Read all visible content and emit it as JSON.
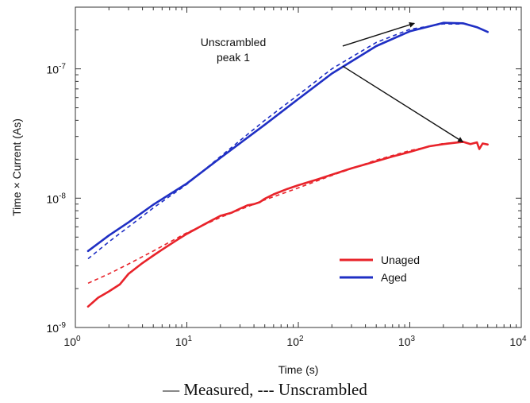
{
  "chart_data": {
    "type": "line",
    "title": "",
    "xlabel": "Time (s)",
    "ylabel": "Time × Current (As)",
    "x_scale": "log",
    "y_scale": "log",
    "xlim": [
      1,
      10000
    ],
    "ylim": [
      1e-09,
      3e-07
    ],
    "x_ticks": [
      {
        "value": 1,
        "base": "10",
        "exp": "0"
      },
      {
        "value": 10,
        "base": "10",
        "exp": "1"
      },
      {
        "value": 100,
        "base": "10",
        "exp": "2"
      },
      {
        "value": 1000,
        "base": "10",
        "exp": "3"
      },
      {
        "value": 10000,
        "base": "10",
        "exp": "4"
      }
    ],
    "y_ticks": [
      {
        "value": 1e-09,
        "base": "10",
        "exp": "-9"
      },
      {
        "value": 1e-08,
        "base": "10",
        "exp": "-8"
      },
      {
        "value": 1e-07,
        "base": "10",
        "exp": "-7"
      }
    ],
    "grid": false,
    "legend_position": "bottom-right",
    "legend": [
      {
        "label": "Unaged",
        "color": "#e8232a"
      },
      {
        "label": "Aged",
        "color": "#1f2fc4"
      }
    ],
    "series": [
      {
        "key": "unaged-measured",
        "style": "solid",
        "color": "#e8232a",
        "x": [
          1.3,
          1.6,
          2,
          2.5,
          3,
          4,
          5,
          6,
          8,
          10,
          15,
          20,
          25,
          30,
          35,
          40,
          45,
          50,
          60,
          80,
          100,
          150,
          200,
          300,
          500,
          700,
          1000,
          1500,
          2000,
          2500,
          3000,
          3500,
          4000,
          4200,
          4500,
          5000
        ],
        "y": [
          1.45e-09,
          1.7e-09,
          1.9e-09,
          2.15e-09,
          2.6e-09,
          3.15e-09,
          3.6e-09,
          4e-09,
          4.7e-09,
          5.3e-09,
          6.4e-09,
          7.3e-09,
          7.7e-09,
          8.3e-09,
          8.8e-09,
          9e-09,
          9.3e-09,
          9.9e-09,
          1.07e-08,
          1.18e-08,
          1.26e-08,
          1.4e-08,
          1.52e-08,
          1.7e-08,
          1.93e-08,
          2.1e-08,
          2.28e-08,
          2.52e-08,
          2.62e-08,
          2.68e-08,
          2.73e-08,
          2.62e-08,
          2.7e-08,
          2.4e-08,
          2.65e-08,
          2.6e-08
        ]
      },
      {
        "key": "unaged-unscrambled",
        "style": "dashed",
        "color": "#e8232a",
        "x": [
          1.3,
          2,
          3,
          5,
          10,
          20,
          50,
          100,
          200,
          500,
          1000,
          2000,
          3000
        ],
        "y": [
          2.2e-09,
          2.6e-09,
          3.1e-09,
          3.9e-09,
          5.4e-09,
          7.1e-09,
          9.7e-09,
          1.2e-08,
          1.5e-08,
          1.97e-08,
          2.33e-08,
          2.65e-08,
          2.7e-08
        ]
      },
      {
        "key": "aged-measured",
        "style": "solid",
        "color": "#1f2fc4",
        "x": [
          1.3,
          2,
          3,
          5,
          10,
          20,
          50,
          100,
          200,
          500,
          1000,
          2000,
          3000,
          4000,
          5000
        ],
        "y": [
          3.9e-09,
          5.15e-09,
          6.5e-09,
          8.9e-09,
          1.3e-08,
          2.05e-08,
          3.7e-08,
          5.85e-08,
          9.2e-08,
          1.5e-07,
          1.95e-07,
          2.27e-07,
          2.25e-07,
          2.1e-07,
          1.93e-07
        ]
      },
      {
        "key": "aged-unscrambled",
        "style": "dashed",
        "color": "#1f2fc4",
        "x": [
          1.3,
          2,
          3,
          5,
          10,
          20,
          50,
          100,
          200,
          500,
          1000,
          2000,
          3000
        ],
        "y": [
          3.4e-09,
          4.6e-09,
          6e-09,
          8.4e-09,
          1.28e-08,
          2.1e-08,
          4e-08,
          6.3e-08,
          1e-07,
          1.6e-07,
          2.02e-07,
          2.23e-07,
          2.22e-07
        ]
      }
    ],
    "annotations": [
      {
        "lines": [
          "Unscrambled",
          "peak 1"
        ],
        "arrows": [
          {
            "from": [
              250,
              1.5e-07
            ],
            "to": [
              1100,
              2.25e-07
            ]
          },
          {
            "from": [
              250,
              1.05e-07
            ],
            "to": [
              3000,
              2.72e-08
            ]
          }
        ]
      }
    ]
  },
  "caption": "— Measured,  --- Unscrambled"
}
